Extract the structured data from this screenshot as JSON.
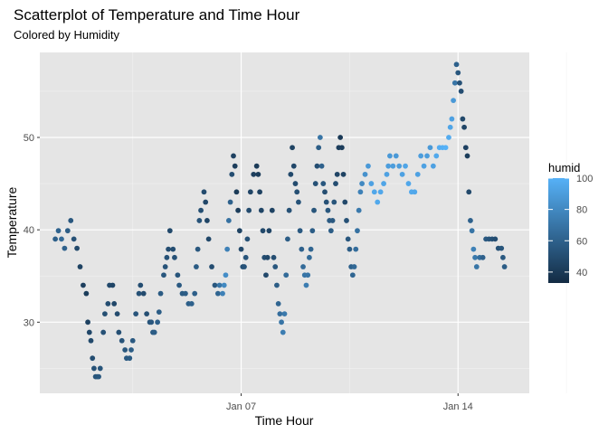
{
  "chart_data": {
    "type": "scatter",
    "title": "Scatterplot of Temperature and Time Hour",
    "subtitle": "Colored by Humidity",
    "xlabel": "Time Hour",
    "ylabel": "Temperature",
    "x_ticks": [
      "Jan 07",
      "Jan 14"
    ],
    "x_tick_days": [
      7,
      14
    ],
    "y_ticks": [
      30,
      40,
      50
    ],
    "xlim_days": [
      0.5,
      16.3
    ],
    "ylim": [
      22.3,
      59.2
    ],
    "grid": true,
    "background": "#e5e5e5",
    "legend": {
      "title": "humid",
      "position": "right",
      "labels": [
        40,
        60,
        80,
        100
      ],
      "range": [
        33,
        100
      ],
      "color_low": "#132b43",
      "color_high": "#56b1f7"
    },
    "points": [
      {
        "day": 1.0,
        "temp": 39.0,
        "humid": 59
      },
      {
        "day": 1.1,
        "temp": 39.9,
        "humid": 61
      },
      {
        "day": 1.2,
        "temp": 39.0,
        "humid": 64
      },
      {
        "day": 1.3,
        "temp": 38.0,
        "humid": 60
      },
      {
        "day": 1.4,
        "temp": 39.9,
        "humid": 58
      },
      {
        "day": 1.5,
        "temp": 41.0,
        "humid": 55
      },
      {
        "day": 1.6,
        "temp": 39.0,
        "humid": 52
      },
      {
        "day": 1.7,
        "temp": 38.0,
        "humid": 48
      },
      {
        "day": 1.8,
        "temp": 36.0,
        "humid": 45
      },
      {
        "day": 1.9,
        "temp": 34.0,
        "humid": 43
      },
      {
        "day": 2.0,
        "temp": 33.1,
        "humid": 42
      },
      {
        "day": 2.05,
        "temp": 30.0,
        "humid": 44
      },
      {
        "day": 2.1,
        "temp": 28.9,
        "humid": 47
      },
      {
        "day": 2.15,
        "temp": 28.0,
        "humid": 48
      },
      {
        "day": 2.2,
        "temp": 26.1,
        "humid": 50
      },
      {
        "day": 2.25,
        "temp": 25.0,
        "humid": 52
      },
      {
        "day": 2.3,
        "temp": 24.1,
        "humid": 53
      },
      {
        "day": 2.35,
        "temp": 24.1,
        "humid": 54
      },
      {
        "day": 2.4,
        "temp": 24.1,
        "humid": 55
      },
      {
        "day": 2.45,
        "temp": 25.0,
        "humid": 54
      },
      {
        "day": 2.55,
        "temp": 28.9,
        "humid": 52
      },
      {
        "day": 2.6,
        "temp": 30.9,
        "humid": 51
      },
      {
        "day": 2.7,
        "temp": 32.0,
        "humid": 50
      },
      {
        "day": 2.75,
        "temp": 34.0,
        "humid": 48
      },
      {
        "day": 2.85,
        "temp": 34.0,
        "humid": 46
      },
      {
        "day": 2.9,
        "temp": 32.0,
        "humid": 47
      },
      {
        "day": 3.0,
        "temp": 30.9,
        "humid": 49
      },
      {
        "day": 3.05,
        "temp": 28.9,
        "humid": 51
      },
      {
        "day": 3.15,
        "temp": 28.0,
        "humid": 53
      },
      {
        "day": 3.25,
        "temp": 27.0,
        "humid": 55
      },
      {
        "day": 3.3,
        "temp": 26.1,
        "humid": 56
      },
      {
        "day": 3.4,
        "temp": 26.1,
        "humid": 57
      },
      {
        "day": 3.45,
        "temp": 27.0,
        "humid": 58
      },
      {
        "day": 3.5,
        "temp": 28.0,
        "humid": 56
      },
      {
        "day": 3.6,
        "temp": 30.9,
        "humid": 54
      },
      {
        "day": 3.7,
        "temp": 33.1,
        "humid": 52
      },
      {
        "day": 3.75,
        "temp": 34.0,
        "humid": 50
      },
      {
        "day": 3.85,
        "temp": 33.1,
        "humid": 49
      },
      {
        "day": 3.95,
        "temp": 30.9,
        "humid": 51
      },
      {
        "day": 4.05,
        "temp": 30.0,
        "humid": 53
      },
      {
        "day": 4.1,
        "temp": 30.0,
        "humid": 55
      },
      {
        "day": 4.15,
        "temp": 28.9,
        "humid": 57
      },
      {
        "day": 4.2,
        "temp": 28.9,
        "humid": 58
      },
      {
        "day": 4.3,
        "temp": 30.0,
        "humid": 59
      },
      {
        "day": 4.35,
        "temp": 31.1,
        "humid": 58
      },
      {
        "day": 4.4,
        "temp": 33.1,
        "humid": 57
      },
      {
        "day": 4.5,
        "temp": 35.1,
        "humid": 55
      },
      {
        "day": 4.55,
        "temp": 36.0,
        "humid": 53
      },
      {
        "day": 4.6,
        "temp": 37.0,
        "humid": 52
      },
      {
        "day": 4.65,
        "temp": 37.9,
        "humid": 50
      },
      {
        "day": 4.7,
        "temp": 39.9,
        "humid": 48
      },
      {
        "day": 4.8,
        "temp": 37.9,
        "humid": 50
      },
      {
        "day": 4.85,
        "temp": 37.0,
        "humid": 52
      },
      {
        "day": 4.95,
        "temp": 35.1,
        "humid": 54
      },
      {
        "day": 5.0,
        "temp": 34.0,
        "humid": 56
      },
      {
        "day": 5.1,
        "temp": 33.1,
        "humid": 57
      },
      {
        "day": 5.2,
        "temp": 33.1,
        "humid": 58
      },
      {
        "day": 5.3,
        "temp": 32.0,
        "humid": 59
      },
      {
        "day": 5.4,
        "temp": 32.0,
        "humid": 60
      },
      {
        "day": 5.5,
        "temp": 33.1,
        "humid": 59
      },
      {
        "day": 5.55,
        "temp": 36.0,
        "humid": 57
      },
      {
        "day": 5.6,
        "temp": 37.9,
        "humid": 55
      },
      {
        "day": 5.65,
        "temp": 41.0,
        "humid": 53
      },
      {
        "day": 5.7,
        "temp": 42.1,
        "humid": 51
      },
      {
        "day": 5.8,
        "temp": 44.1,
        "humid": 49
      },
      {
        "day": 5.85,
        "temp": 43.0,
        "humid": 47
      },
      {
        "day": 5.9,
        "temp": 41.0,
        "humid": 46
      },
      {
        "day": 5.95,
        "temp": 39.0,
        "humid": 47
      },
      {
        "day": 6.05,
        "temp": 36.0,
        "humid": 50
      },
      {
        "day": 6.15,
        "temp": 34.0,
        "humid": 55
      },
      {
        "day": 6.25,
        "temp": 33.1,
        "humid": 62
      },
      {
        "day": 6.3,
        "temp": 34.0,
        "humid": 70
      },
      {
        "day": 6.4,
        "temp": 33.1,
        "humid": 76
      },
      {
        "day": 6.45,
        "temp": 34.0,
        "humid": 80
      },
      {
        "day": 6.5,
        "temp": 35.1,
        "humid": 82
      },
      {
        "day": 6.55,
        "temp": 37.9,
        "humid": 76
      },
      {
        "day": 6.6,
        "temp": 41.0,
        "humid": 68
      },
      {
        "day": 6.65,
        "temp": 43.0,
        "humid": 60
      },
      {
        "day": 6.7,
        "temp": 46.0,
        "humid": 50
      },
      {
        "day": 6.75,
        "temp": 48.0,
        "humid": 44
      },
      {
        "day": 6.8,
        "temp": 46.9,
        "humid": 42
      },
      {
        "day": 6.85,
        "temp": 44.1,
        "humid": 41
      },
      {
        "day": 6.9,
        "temp": 42.1,
        "humid": 42
      },
      {
        "day": 6.95,
        "temp": 39.9,
        "humid": 45
      },
      {
        "day": 7.0,
        "temp": 37.9,
        "humid": 48
      },
      {
        "day": 7.05,
        "temp": 36.0,
        "humid": 51
      },
      {
        "day": 7.1,
        "temp": 36.0,
        "humid": 53
      },
      {
        "day": 7.15,
        "temp": 37.0,
        "humid": 54
      },
      {
        "day": 7.2,
        "temp": 39.0,
        "humid": 52
      },
      {
        "day": 7.25,
        "temp": 42.1,
        "humid": 49
      },
      {
        "day": 7.3,
        "temp": 44.1,
        "humid": 46
      },
      {
        "day": 7.4,
        "temp": 46.0,
        "humid": 43
      },
      {
        "day": 7.5,
        "temp": 46.9,
        "humid": 41
      },
      {
        "day": 7.55,
        "temp": 46.0,
        "humid": 42
      },
      {
        "day": 7.6,
        "temp": 44.1,
        "humid": 44
      },
      {
        "day": 7.65,
        "temp": 42.1,
        "humid": 46
      },
      {
        "day": 7.7,
        "temp": 39.9,
        "humid": 48
      },
      {
        "day": 7.75,
        "temp": 37.0,
        "humid": 50
      },
      {
        "day": 7.8,
        "temp": 35.1,
        "humid": 48
      },
      {
        "day": 7.85,
        "temp": 37.0,
        "humid": 47
      },
      {
        "day": 7.9,
        "temp": 39.9,
        "humid": 46
      },
      {
        "day": 8.0,
        "temp": 42.1,
        "humid": 45
      },
      {
        "day": 8.05,
        "temp": 37.0,
        "humid": 50
      },
      {
        "day": 8.1,
        "temp": 36.0,
        "humid": 55
      },
      {
        "day": 8.15,
        "temp": 34.0,
        "humid": 58
      },
      {
        "day": 8.2,
        "temp": 32.0,
        "humid": 62
      },
      {
        "day": 8.25,
        "temp": 30.9,
        "humid": 66
      },
      {
        "day": 8.3,
        "temp": 30.0,
        "humid": 70
      },
      {
        "day": 8.35,
        "temp": 28.9,
        "humid": 74
      },
      {
        "day": 8.4,
        "temp": 30.9,
        "humid": 72
      },
      {
        "day": 8.45,
        "temp": 35.1,
        "humid": 65
      },
      {
        "day": 8.5,
        "temp": 39.0,
        "humid": 58
      },
      {
        "day": 8.55,
        "temp": 42.1,
        "humid": 52
      },
      {
        "day": 8.6,
        "temp": 46.0,
        "humid": 48
      },
      {
        "day": 8.65,
        "temp": 48.9,
        "humid": 45
      },
      {
        "day": 8.7,
        "temp": 46.9,
        "humid": 47
      },
      {
        "day": 8.75,
        "temp": 45.0,
        "humid": 49
      },
      {
        "day": 8.8,
        "temp": 44.1,
        "humid": 51
      },
      {
        "day": 8.85,
        "temp": 43.0,
        "humid": 53
      },
      {
        "day": 8.9,
        "temp": 39.9,
        "humid": 56
      },
      {
        "day": 8.95,
        "temp": 37.9,
        "humid": 60
      },
      {
        "day": 9.0,
        "temp": 36.0,
        "humid": 65
      },
      {
        "day": 9.05,
        "temp": 35.1,
        "humid": 70
      },
      {
        "day": 9.1,
        "temp": 34.0,
        "humid": 74
      },
      {
        "day": 9.15,
        "temp": 35.1,
        "humid": 70
      },
      {
        "day": 9.2,
        "temp": 37.0,
        "humid": 65
      },
      {
        "day": 9.25,
        "temp": 37.9,
        "humid": 62
      },
      {
        "day": 9.3,
        "temp": 39.9,
        "humid": 58
      },
      {
        "day": 9.35,
        "temp": 42.1,
        "humid": 54
      },
      {
        "day": 9.4,
        "temp": 45.0,
        "humid": 52
      },
      {
        "day": 9.45,
        "temp": 46.9,
        "humid": 50
      },
      {
        "day": 9.5,
        "temp": 48.9,
        "humid": 58
      },
      {
        "day": 9.55,
        "temp": 50.0,
        "humid": 70
      },
      {
        "day": 9.6,
        "temp": 46.9,
        "humid": 60
      },
      {
        "day": 9.65,
        "temp": 45.0,
        "humid": 55
      },
      {
        "day": 9.7,
        "temp": 44.1,
        "humid": 50
      },
      {
        "day": 9.75,
        "temp": 43.0,
        "humid": 52
      },
      {
        "day": 9.8,
        "temp": 42.1,
        "humid": 55
      },
      {
        "day": 9.85,
        "temp": 41.0,
        "humid": 57
      },
      {
        "day": 9.9,
        "temp": 39.9,
        "humid": 58
      },
      {
        "day": 9.95,
        "temp": 41.0,
        "humid": 56
      },
      {
        "day": 10.0,
        "temp": 43.0,
        "humid": 54
      },
      {
        "day": 10.05,
        "temp": 45.0,
        "humid": 50
      },
      {
        "day": 10.1,
        "temp": 46.0,
        "humid": 46
      },
      {
        "day": 10.15,
        "temp": 48.9,
        "humid": 42
      },
      {
        "day": 10.2,
        "temp": 50.0,
        "humid": 40
      },
      {
        "day": 10.25,
        "temp": 48.9,
        "humid": 42
      },
      {
        "day": 10.3,
        "temp": 46.0,
        "humid": 45
      },
      {
        "day": 10.35,
        "temp": 43.0,
        "humid": 48
      },
      {
        "day": 10.4,
        "temp": 41.0,
        "humid": 52
      },
      {
        "day": 10.45,
        "temp": 39.0,
        "humid": 55
      },
      {
        "day": 10.5,
        "temp": 37.9,
        "humid": 58
      },
      {
        "day": 10.55,
        "temp": 36.0,
        "humid": 60
      },
      {
        "day": 10.6,
        "temp": 35.1,
        "humid": 62
      },
      {
        "day": 10.65,
        "temp": 36.0,
        "humid": 64
      },
      {
        "day": 10.7,
        "temp": 37.9,
        "humid": 66
      },
      {
        "day": 10.75,
        "temp": 39.9,
        "humid": 68
      },
      {
        "day": 10.8,
        "temp": 42.1,
        "humid": 72
      },
      {
        "day": 10.85,
        "temp": 44.1,
        "humid": 76
      },
      {
        "day": 10.9,
        "temp": 45.0,
        "humid": 80
      },
      {
        "day": 11.0,
        "temp": 46.0,
        "humid": 84
      },
      {
        "day": 11.1,
        "temp": 46.9,
        "humid": 88
      },
      {
        "day": 11.2,
        "temp": 45.0,
        "humid": 92
      },
      {
        "day": 11.3,
        "temp": 44.1,
        "humid": 95
      },
      {
        "day": 11.4,
        "temp": 43.0,
        "humid": 96
      },
      {
        "day": 11.5,
        "temp": 44.1,
        "humid": 95
      },
      {
        "day": 11.6,
        "temp": 45.0,
        "humid": 94
      },
      {
        "day": 11.7,
        "temp": 46.0,
        "humid": 92
      },
      {
        "day": 11.75,
        "temp": 46.9,
        "humid": 90
      },
      {
        "day": 11.8,
        "temp": 48.0,
        "humid": 88
      },
      {
        "day": 11.9,
        "temp": 46.9,
        "humid": 90
      },
      {
        "day": 12.0,
        "temp": 48.0,
        "humid": 88
      },
      {
        "day": 12.1,
        "temp": 46.9,
        "humid": 90
      },
      {
        "day": 12.2,
        "temp": 46.0,
        "humid": 92
      },
      {
        "day": 12.3,
        "temp": 46.9,
        "humid": 94
      },
      {
        "day": 12.4,
        "temp": 45.0,
        "humid": 95
      },
      {
        "day": 12.5,
        "temp": 44.1,
        "humid": 96
      },
      {
        "day": 12.6,
        "temp": 44.1,
        "humid": 95
      },
      {
        "day": 12.7,
        "temp": 46.0,
        "humid": 92
      },
      {
        "day": 12.8,
        "temp": 48.0,
        "humid": 90
      },
      {
        "day": 12.9,
        "temp": 46.9,
        "humid": 92
      },
      {
        "day": 13.0,
        "temp": 48.0,
        "humid": 90
      },
      {
        "day": 13.1,
        "temp": 48.9,
        "humid": 88
      },
      {
        "day": 13.2,
        "temp": 46.9,
        "humid": 92
      },
      {
        "day": 13.3,
        "temp": 48.0,
        "humid": 96
      },
      {
        "day": 13.4,
        "temp": 48.9,
        "humid": 98
      },
      {
        "day": 13.5,
        "temp": 48.9,
        "humid": 99
      },
      {
        "day": 13.6,
        "temp": 48.9,
        "humid": 100
      },
      {
        "day": 13.7,
        "temp": 50.0,
        "humid": 97
      },
      {
        "day": 13.75,
        "temp": 51.1,
        "humid": 94
      },
      {
        "day": 13.8,
        "temp": 52.0,
        "humid": 92
      },
      {
        "day": 13.85,
        "temp": 54.0,
        "humid": 88
      },
      {
        "day": 13.9,
        "temp": 55.9,
        "humid": 70
      },
      {
        "day": 13.95,
        "temp": 57.9,
        "humid": 60
      },
      {
        "day": 14.0,
        "temp": 57.0,
        "humid": 55
      },
      {
        "day": 14.05,
        "temp": 55.9,
        "humid": 52
      },
      {
        "day": 14.1,
        "temp": 55.0,
        "humid": 50
      },
      {
        "day": 14.15,
        "temp": 52.0,
        "humid": 48
      },
      {
        "day": 14.2,
        "temp": 51.1,
        "humid": 46
      },
      {
        "day": 14.25,
        "temp": 48.9,
        "humid": 44
      },
      {
        "day": 14.3,
        "temp": 48.0,
        "humid": 42
      },
      {
        "day": 14.35,
        "temp": 44.1,
        "humid": 48
      },
      {
        "day": 14.4,
        "temp": 41.0,
        "humid": 60
      },
      {
        "day": 14.45,
        "temp": 39.9,
        "humid": 70
      },
      {
        "day": 14.5,
        "temp": 37.9,
        "humid": 76
      },
      {
        "day": 14.55,
        "temp": 37.0,
        "humid": 72
      },
      {
        "day": 14.6,
        "temp": 36.0,
        "humid": 70
      },
      {
        "day": 14.7,
        "temp": 37.0,
        "humid": 66
      },
      {
        "day": 14.8,
        "temp": 37.0,
        "humid": 60
      },
      {
        "day": 14.9,
        "temp": 39.0,
        "humid": 56
      },
      {
        "day": 15.0,
        "temp": 39.0,
        "humid": 54
      },
      {
        "day": 15.1,
        "temp": 39.0,
        "humid": 52
      },
      {
        "day": 15.2,
        "temp": 39.0,
        "humid": 50
      },
      {
        "day": 15.3,
        "temp": 38.0,
        "humid": 52
      },
      {
        "day": 15.4,
        "temp": 38.0,
        "humid": 54
      },
      {
        "day": 15.45,
        "temp": 37.0,
        "humid": 56
      },
      {
        "day": 15.5,
        "temp": 36.0,
        "humid": 58
      }
    ]
  }
}
